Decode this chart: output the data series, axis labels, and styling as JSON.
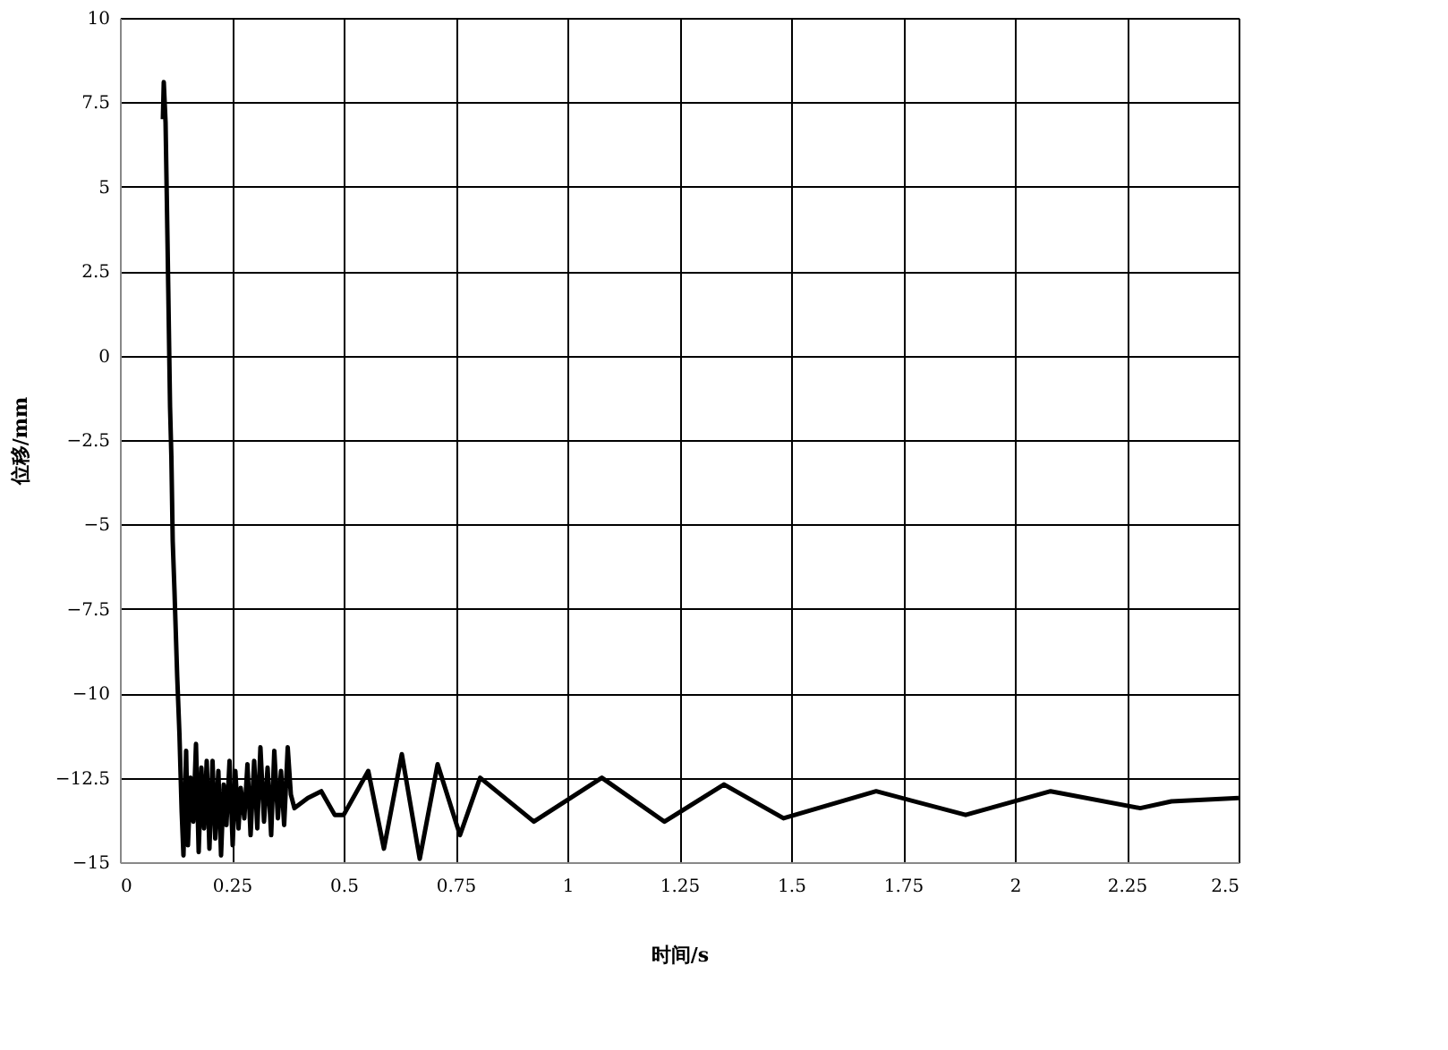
{
  "chart_data": {
    "type": "line",
    "xlabel": "时间/s",
    "ylabel": "位移/mm",
    "xlim": [
      0,
      2.5
    ],
    "xticks": [
      0,
      0.25,
      0.5,
      0.75,
      1,
      1.25,
      1.5,
      1.75,
      2,
      2.25,
      2.5
    ],
    "ylim": [
      -15,
      10
    ],
    "yticks": [
      10,
      7.5,
      5,
      2.5,
      0,
      {
        "value": -2.5,
        "label": "−2.5"
      },
      {
        "value": -5,
        "label": "−5"
      },
      {
        "value": -7.5,
        "label": "−7.5"
      },
      {
        "value": -10,
        "label": "−10"
      },
      {
        "value": -12.5,
        "label": "−12.5"
      },
      {
        "value": -15,
        "label": "−15"
      }
    ],
    "grid": true,
    "line_style": "solid",
    "marker": "none",
    "series": [
      {
        "color": "#000000",
        "x": [
          0.096,
          0.098,
          0.1,
          0.102,
          0.105,
          0.108,
          0.112,
          0.115,
          0.118,
          0.122,
          0.128,
          0.133,
          0.138,
          0.142,
          0.148,
          0.152,
          0.158,
          0.164,
          0.17,
          0.176,
          0.182,
          0.188,
          0.194,
          0.2,
          0.207,
          0.213,
          0.22,
          0.226,
          0.232,
          0.238,
          0.245,
          0.252,
          0.258,
          0.265,
          0.27,
          0.278,
          0.285,
          0.292,
          0.3,
          0.307,
          0.314,
          0.322,
          0.33,
          0.338,
          0.345,
          0.353,
          0.36,
          0.367,
          0.375,
          0.382,
          0.39,
          0.42,
          0.45,
          0.48,
          0.5,
          0.555,
          0.59,
          0.63,
          0.67,
          0.71,
          0.76,
          0.805,
          0.925,
          1.077,
          1.217,
          1.35,
          1.483,
          1.69,
          1.89,
          2.08,
          2.28,
          2.35,
          2.5
        ],
        "values": [
          7.0,
          8.1,
          7.5,
          6.9,
          4.5,
          2.0,
          -1.5,
          -3.0,
          -5.5,
          -7.0,
          -9.5,
          -11.2,
          -13.5,
          -14.8,
          -11.7,
          -14.5,
          -12.5,
          -13.8,
          -11.5,
          -14.7,
          -12.2,
          -14.0,
          -12.0,
          -14.6,
          -12.0,
          -14.3,
          -12.3,
          -14.8,
          -12.7,
          -13.9,
          -12.0,
          -14.5,
          -12.3,
          -14.0,
          -12.8,
          -13.7,
          -12.1,
          -14.2,
          -12.0,
          -14.0,
          -11.6,
          -13.8,
          -12.2,
          -14.2,
          -11.7,
          -13.7,
          -12.3,
          -13.9,
          -11.6,
          -13.0,
          -13.4,
          -13.1,
          -12.9,
          -13.6,
          -13.6,
          -12.3,
          -14.6,
          -11.8,
          -14.9,
          -12.1,
          -14.2,
          -12.5,
          -13.8,
          -12.5,
          -13.8,
          -12.7,
          -13.7,
          -12.9,
          -13.6,
          -12.9,
          -13.4,
          -13.2,
          -13.1
        ]
      }
    ]
  }
}
